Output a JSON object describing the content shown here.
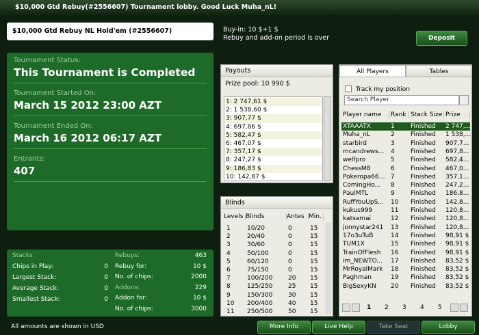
{
  "window_title": "$10,000 Gtd Rebuy(#2556607) Tournament lobby. Good Luck Muha_nL!",
  "header": {
    "title": "$10,000 Gtd Rebuy NL Hold'em (#2556607)",
    "buyin": "Buy-in: 10 $+1 $",
    "rebuy_note": "Rebuy and add-on period is over",
    "deposit": "Deposit"
  },
  "status": [
    {
      "label": "Tournament Status:",
      "value": "This Tournament is Completed"
    },
    {
      "label": "Tournament Started On:",
      "value": "March 15 2012  23:00 AZT"
    },
    {
      "label": "Tournament Ended On:",
      "value": "March 16 2012  06:17 AZT"
    },
    {
      "label": "Entrants:",
      "value": "407"
    }
  ],
  "stacks": {
    "title": "Stacks",
    "rows": [
      [
        "Chips in Play:",
        "0"
      ],
      [
        "Largest Stack:",
        "0"
      ],
      [
        "Average Stack:",
        "0"
      ],
      [
        "Smallest Stack:",
        "0"
      ]
    ]
  },
  "rebuys": {
    "rows": [
      [
        "Rebuys:",
        "463"
      ],
      [
        "Rebuy for:",
        "10 $"
      ],
      [
        "No. of chips:",
        "2000"
      ],
      [
        "Addons:",
        "229"
      ],
      [
        "Addon for:",
        "10 $"
      ],
      [
        "No. of chips:",
        "3000"
      ]
    ]
  },
  "payouts": {
    "title": "Payouts",
    "prize_pool": "Prize pool: 10 990 $",
    "rows": [
      "1: 2 747,61 $",
      "2: 1 538,60 $",
      "3: 907,77 $",
      "4: 697,86 $",
      "5: 582,47 $",
      "6: 467,07 $",
      "7: 357,17 $",
      "8: 247,27 $",
      "9: 186,83 $",
      "10: 142,87 $"
    ]
  },
  "blinds": {
    "title": "Blinds",
    "columns": [
      "Levels",
      "Blinds",
      "Antes",
      "Min."
    ],
    "rows": [
      [
        "1",
        "10/20",
        "0",
        "15"
      ],
      [
        "2",
        "20/40",
        "0",
        "15"
      ],
      [
        "3",
        "30/60",
        "0",
        "15"
      ],
      [
        "4",
        "50/100",
        "0",
        "15"
      ],
      [
        "5",
        "60/120",
        "0",
        "15"
      ],
      [
        "6",
        "75/150",
        "0",
        "15"
      ],
      [
        "7",
        "100/200",
        "20",
        "15"
      ],
      [
        "8",
        "125/250",
        "25",
        "15"
      ],
      [
        "9",
        "150/300",
        "30",
        "15"
      ],
      [
        "10",
        "200/400",
        "40",
        "15"
      ],
      [
        "11",
        "250/500",
        "50",
        "15"
      ]
    ]
  },
  "players": {
    "tabs": [
      "All Players",
      "Tables"
    ],
    "track": "Track my position",
    "search": "Search Player",
    "columns": [
      "Player name",
      "Rank",
      "Stack Size",
      "Prize"
    ],
    "rows": [
      [
        "XTAAATX",
        "1",
        "Finished",
        "2 747,..."
      ],
      [
        "Muha_nL",
        "2",
        "Finished",
        "1 538,..."
      ],
      [
        "starbird",
        "3",
        "Finished",
        "907,7..."
      ],
      [
        "mcandrews...",
        "4",
        "Finished",
        "697,8..."
      ],
      [
        "welfpro",
        "5",
        "Finished",
        "582,4..."
      ],
      [
        "ChessM8",
        "6",
        "Finished",
        "467,0..."
      ],
      [
        "Pokeropa66...",
        "7",
        "Finished",
        "357,1..."
      ],
      [
        "ComingHo...",
        "8",
        "Finished",
        "247,2..."
      ],
      [
        "PaulMTL",
        "9",
        "Finished",
        "186,8..."
      ],
      [
        "RuffYouUpS...",
        "10",
        "Finished",
        "142,8..."
      ],
      [
        "kukus999",
        "11",
        "Finished",
        "120,8..."
      ],
      [
        "katsamai",
        "12",
        "Finished",
        "120,8..."
      ],
      [
        "jonnystar241",
        "13",
        "Finished",
        "120,8..."
      ],
      [
        "17o3uTuB",
        "14",
        "Finished",
        "98,91 $"
      ],
      [
        "TUM1X",
        "15",
        "Finished",
        "98,91 $"
      ],
      [
        "TrainOfFlesh",
        "16",
        "Finished",
        "98,91 $"
      ],
      [
        "im_NEWTO...",
        "17",
        "Finished",
        "83,52 $"
      ],
      [
        "MrRoyalMark",
        "18",
        "Finished",
        "83,52 $"
      ],
      [
        "Paghman",
        "19",
        "Finished",
        "83,52 $"
      ],
      [
        "BigSexyKN",
        "20",
        "Finished",
        "83,52 $"
      ]
    ],
    "pages": [
      "1",
      "2",
      "3",
      "4",
      "5"
    ]
  },
  "footer": {
    "note": "All amounts are shown in USD",
    "buttons": [
      "More Info",
      "Live Help",
      "Take Seat",
      "Lobby"
    ]
  }
}
